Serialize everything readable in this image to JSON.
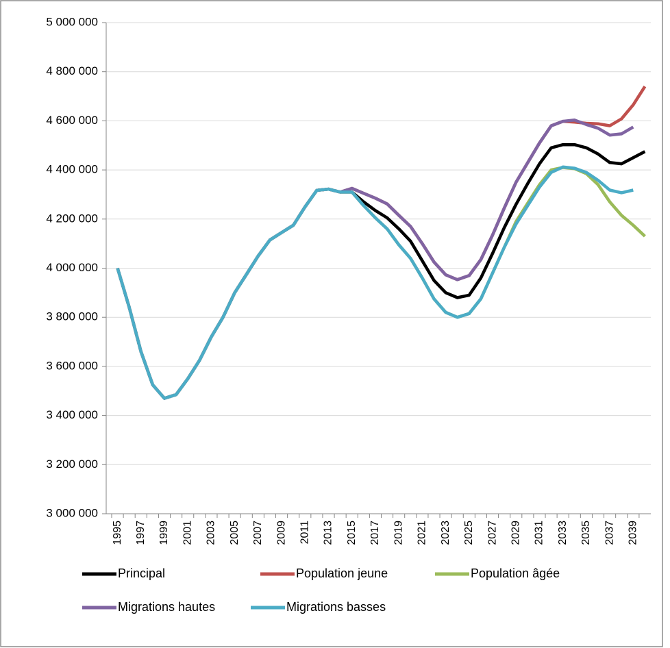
{
  "chart_data": {
    "type": "line",
    "categories": [
      "1995",
      null,
      "1997",
      null,
      "1999",
      null,
      "2001",
      null,
      "2003",
      null,
      "2005",
      null,
      "2007",
      null,
      "2009",
      null,
      "2011",
      null,
      "2013",
      null,
      "2015",
      null,
      "2017",
      null,
      "2019",
      null,
      "2021",
      null,
      "2023",
      null,
      "2025",
      null,
      "2027",
      null,
      "2029",
      null,
      "2031",
      null,
      "2033",
      null,
      "2035",
      null,
      "2037",
      null,
      "2039",
      null
    ],
    "series": [
      {
        "name": "Principal",
        "color": "#000000",
        "values": [
          4000000,
          3840000,
          3660000,
          3525000,
          3470000,
          3485000,
          3550000,
          3625000,
          3720000,
          3800000,
          3900000,
          3975000,
          4050000,
          4115000,
          4145000,
          4175000,
          4250000,
          4317000,
          4322000,
          4310000,
          4310000,
          4270000,
          4235000,
          4205000,
          4160000,
          4110000,
          4030000,
          3950000,
          3900000,
          3880000,
          3890000,
          3960000,
          4060000,
          4165000,
          4260000,
          4345000,
          4425000,
          4490000,
          4503000,
          4503000,
          4490000,
          4465000,
          4430000,
          4425000,
          4450000,
          4475000
        ]
      },
      {
        "name": "Population jeune",
        "color": "#c0504d",
        "values": [
          4000000,
          3840000,
          3660000,
          3525000,
          3470000,
          3485000,
          3550000,
          3625000,
          3720000,
          3800000,
          3900000,
          3975000,
          4050000,
          4115000,
          4145000,
          4175000,
          4250000,
          4317000,
          4322000,
          4310000,
          4325000,
          4305000,
          4285000,
          4262000,
          4215000,
          4170000,
          4100000,
          4025000,
          3973000,
          3953000,
          3970000,
          4035000,
          4135000,
          4245000,
          4350000,
          4430000,
          4510000,
          4580000,
          4598000,
          4595000,
          4590000,
          4588000,
          4580000,
          4608000,
          4665000,
          4740000
        ]
      },
      {
        "name": "Population âgée",
        "color": "#9bbb59",
        "values": [
          4000000,
          3840000,
          3660000,
          3525000,
          3470000,
          3485000,
          3550000,
          3625000,
          3720000,
          3800000,
          3900000,
          3975000,
          4050000,
          4115000,
          4145000,
          4175000,
          4250000,
          4317000,
          4322000,
          4310000,
          4310000,
          4255000,
          4205000,
          4160000,
          4095000,
          4040000,
          3960000,
          3875000,
          3820000,
          3800000,
          3815000,
          3875000,
          3980000,
          4085000,
          4190000,
          4265000,
          4340000,
          4400000,
          4410000,
          4405000,
          4385000,
          4340000,
          4270000,
          4215000,
          4175000,
          4130000
        ]
      },
      {
        "name": "Migrations hautes",
        "color": "#8064a2",
        "values": [
          4000000,
          3840000,
          3660000,
          3525000,
          3470000,
          3485000,
          3550000,
          3625000,
          3720000,
          3800000,
          3900000,
          3975000,
          4050000,
          4115000,
          4145000,
          4175000,
          4250000,
          4317000,
          4322000,
          4310000,
          4325000,
          4305000,
          4285000,
          4262000,
          4215000,
          4170000,
          4100000,
          4025000,
          3973000,
          3953000,
          3970000,
          4035000,
          4135000,
          4245000,
          4350000,
          4430000,
          4510000,
          4580000,
          4598000,
          4603000,
          4585000,
          4570000,
          4542000,
          4547000,
          4575000,
          null
        ]
      },
      {
        "name": "Migrations basses",
        "color": "#4bacc6",
        "values": [
          4000000,
          3840000,
          3660000,
          3525000,
          3470000,
          3485000,
          3550000,
          3625000,
          3720000,
          3800000,
          3900000,
          3975000,
          4050000,
          4115000,
          4145000,
          4175000,
          4250000,
          4317000,
          4322000,
          4310000,
          4310000,
          4255000,
          4205000,
          4160000,
          4095000,
          4040000,
          3960000,
          3875000,
          3820000,
          3800000,
          3815000,
          3875000,
          3980000,
          4085000,
          4180000,
          4255000,
          4330000,
          4390000,
          4412000,
          4407000,
          4390000,
          4358000,
          4318000,
          4307000,
          4318000,
          null
        ]
      }
    ],
    "ylim": [
      3000000,
      5000000
    ],
    "yticks": [
      {
        "value": 3000000,
        "label": "3 000 000"
      },
      {
        "value": 3200000,
        "label": "3 200 000"
      },
      {
        "value": 3400000,
        "label": "3 400 000"
      },
      {
        "value": 3600000,
        "label": "3 600 000"
      },
      {
        "value": 3800000,
        "label": "3 800 000"
      },
      {
        "value": 4000000,
        "label": "4 000 000"
      },
      {
        "value": 4200000,
        "label": "4 200 000"
      },
      {
        "value": 4400000,
        "label": "4 400 000"
      },
      {
        "value": 4600000,
        "label": "4 600 000"
      },
      {
        "value": 4800000,
        "label": "4 800 000"
      },
      {
        "value": 5000000,
        "label": "5 000 000"
      }
    ],
    "grid": true,
    "legend": "bottom"
  }
}
